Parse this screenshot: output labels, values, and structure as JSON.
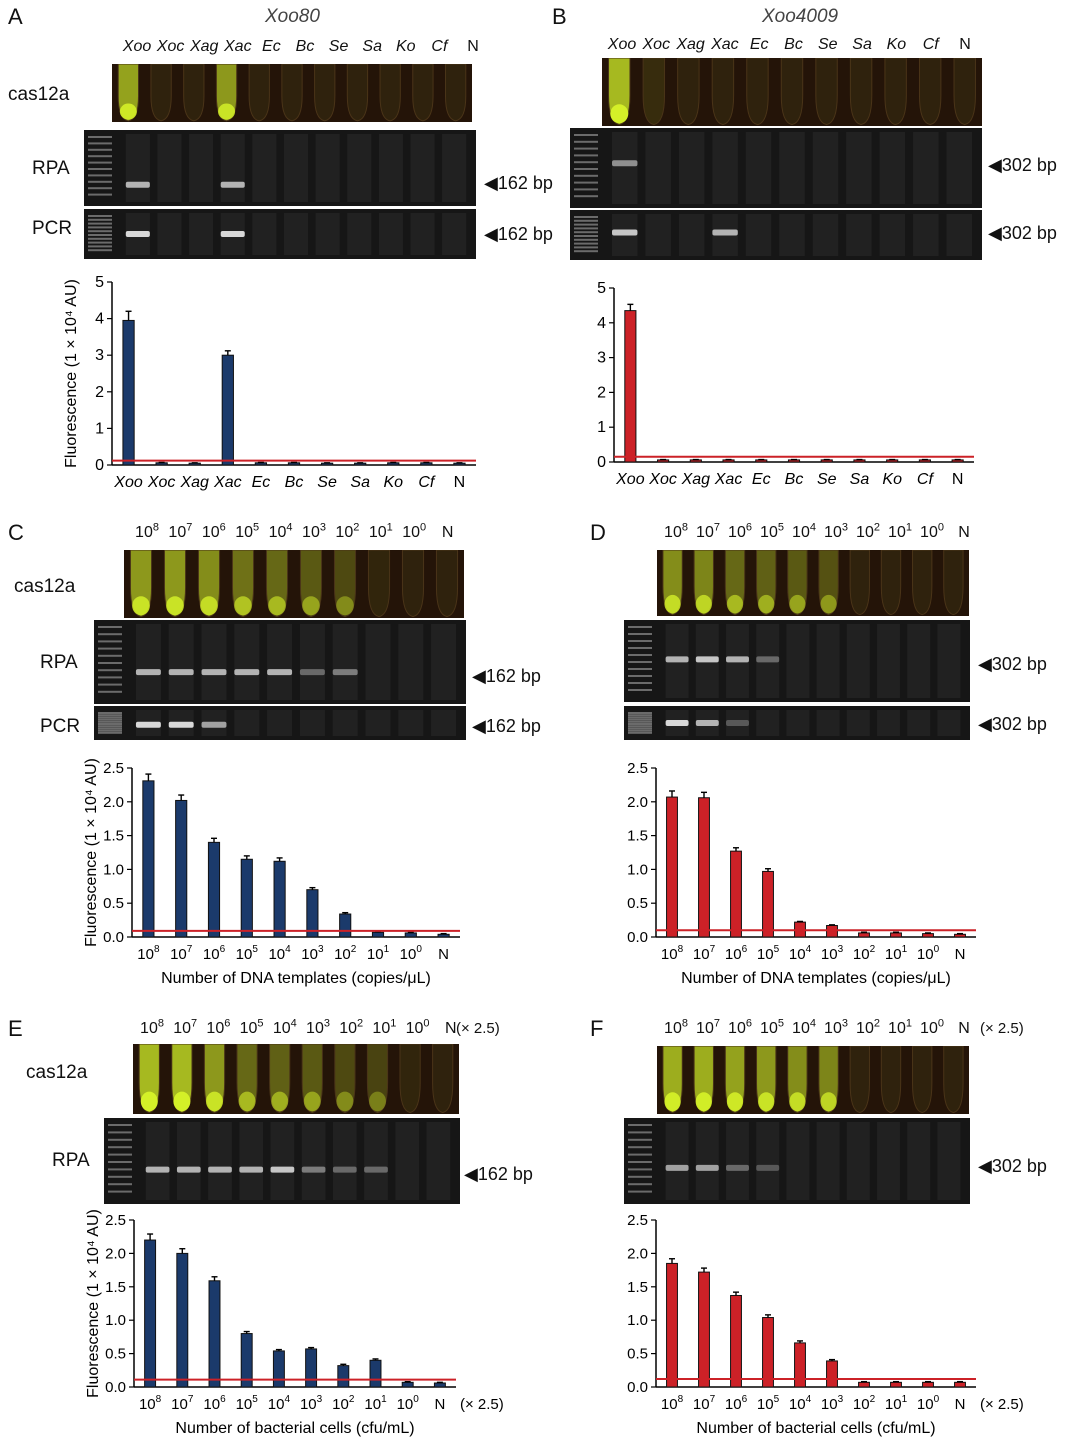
{
  "colors": {
    "blue": "#1b3a6b",
    "red": "#cc2127",
    "threshold": "#cc2127",
    "tube_bg": "#241408",
    "gel_bg": "#161616",
    "band": "#d8d8d8",
    "glow": "#d4f028"
  },
  "common": {
    "cas12a": "cas12a",
    "rpa": "RPA",
    "pcr": "PCR",
    "bp162": "◀162 bp",
    "bp302": "◀302 bp",
    "bp162_spaced": "◀162 bp",
    "bp302_spaced": "◀302 bp",
    "times25": "(× 2.5)"
  },
  "panels": {
    "A": {
      "letter": "A",
      "title": "Xoo80"
    },
    "B": {
      "letter": "B",
      "title": "Xoo4009"
    },
    "C": {
      "letter": "C"
    },
    "D": {
      "letter": "D"
    },
    "E": {
      "letter": "E"
    },
    "F": {
      "letter": "F"
    }
  },
  "strain_lanes": [
    "Xoo",
    "Xoc",
    "Xag",
    "Xac",
    "Ec",
    "Bc",
    "Se",
    "Sa",
    "Ko",
    "Cf",
    "N"
  ],
  "dilution_lanes": [
    {
      "base": "10",
      "exp": "8"
    },
    {
      "base": "10",
      "exp": "7"
    },
    {
      "base": "10",
      "exp": "6"
    },
    {
      "base": "10",
      "exp": "5"
    },
    {
      "base": "10",
      "exp": "4"
    },
    {
      "base": "10",
      "exp": "3"
    },
    {
      "base": "10",
      "exp": "2"
    },
    {
      "base": "10",
      "exp": "1"
    },
    {
      "base": "10",
      "exp": "0"
    },
    {
      "base": "N",
      "exp": ""
    }
  ],
  "chart_data": [
    {
      "panel": "A",
      "type": "bar",
      "categories": [
        "Xoo",
        "Xoc",
        "Xag",
        "Xac",
        "Ec",
        "Bc",
        "Se",
        "Sa",
        "Ko",
        "Cf",
        "N"
      ],
      "values": [
        3.95,
        0.06,
        0.05,
        3.0,
        0.06,
        0.06,
        0.05,
        0.05,
        0.06,
        0.06,
        0.05
      ],
      "errors": [
        0.25,
        0.01,
        0.01,
        0.12,
        0.01,
        0.01,
        0.01,
        0.01,
        0.01,
        0.01,
        0.01
      ],
      "threshold": 0.12,
      "ylim": [
        0,
        5
      ],
      "yticks": [
        0,
        1,
        2,
        3,
        4,
        5
      ],
      "ylabel": "Fluorescence (1 × 10⁴ AU)",
      "xlabel": "",
      "color": "blue"
    },
    {
      "panel": "B",
      "type": "bar",
      "categories": [
        "Xoo",
        "Xoc",
        "Xag",
        "Xac",
        "Ec",
        "Bc",
        "Se",
        "Sa",
        "Ko",
        "Cf",
        "N"
      ],
      "values": [
        4.35,
        0.06,
        0.06,
        0.06,
        0.06,
        0.06,
        0.06,
        0.06,
        0.06,
        0.06,
        0.06
      ],
      "errors": [
        0.18,
        0.01,
        0.01,
        0.01,
        0.01,
        0.01,
        0.01,
        0.01,
        0.01,
        0.01,
        0.01
      ],
      "threshold": 0.15,
      "ylim": [
        0,
        5
      ],
      "yticks": [
        0,
        1,
        2,
        3,
        4,
        5
      ],
      "ylabel": "",
      "xlabel": "",
      "color": "red"
    },
    {
      "panel": "C",
      "type": "bar",
      "categories": [
        "10^8",
        "10^7",
        "10^6",
        "10^5",
        "10^4",
        "10^3",
        "10^2",
        "10^1",
        "10^0",
        "N"
      ],
      "values": [
        2.31,
        2.02,
        1.4,
        1.15,
        1.12,
        0.7,
        0.34,
        0.07,
        0.06,
        0.04
      ],
      "errors": [
        0.1,
        0.08,
        0.06,
        0.05,
        0.05,
        0.03,
        0.02,
        0.01,
        0.01,
        0.01
      ],
      "threshold": 0.09,
      "ylim": [
        0,
        2.5
      ],
      "yticks": [
        0.0,
        0.5,
        1.0,
        1.5,
        2.0,
        2.5
      ],
      "ylabel": "Fluorescence (1 × 10⁴ AU)",
      "xlabel": "Number of DNA templates (copies/μL)",
      "color": "blue"
    },
    {
      "panel": "D",
      "type": "bar",
      "categories": [
        "10^8",
        "10^7",
        "10^6",
        "10^5",
        "10^4",
        "10^3",
        "10^2",
        "10^1",
        "10^0",
        "N"
      ],
      "values": [
        2.07,
        2.06,
        1.27,
        0.97,
        0.22,
        0.17,
        0.06,
        0.06,
        0.05,
        0.04
      ],
      "errors": [
        0.09,
        0.08,
        0.05,
        0.04,
        0.01,
        0.01,
        0.01,
        0.01,
        0.01,
        0.01
      ],
      "threshold": 0.1,
      "ylim": [
        0,
        2.5
      ],
      "yticks": [
        0.0,
        0.5,
        1.0,
        1.5,
        2.0,
        2.5
      ],
      "ylabel": "",
      "xlabel": "Number of DNA templates (copies/μL)",
      "color": "red"
    },
    {
      "panel": "E",
      "type": "bar",
      "categories": [
        "10^8",
        "10^7",
        "10^6",
        "10^5",
        "10^4",
        "10^3",
        "10^2",
        "10^1",
        "10^0",
        "N"
      ],
      "values": [
        2.2,
        2.0,
        1.59,
        0.8,
        0.54,
        0.57,
        0.32,
        0.4,
        0.07,
        0.06
      ],
      "errors": [
        0.09,
        0.07,
        0.06,
        0.03,
        0.02,
        0.02,
        0.02,
        0.02,
        0.01,
        0.01
      ],
      "threshold": 0.11,
      "ylim": [
        0,
        2.5
      ],
      "yticks": [
        0.0,
        0.5,
        1.0,
        1.5,
        2.0,
        2.5
      ],
      "ylabel": "Fluorescence (1 × 10⁴ AU)",
      "xlabel": "Number of bacterial cells (cfu/mL)",
      "color": "blue"
    },
    {
      "panel": "F",
      "type": "bar",
      "categories": [
        "10^8",
        "10^7",
        "10^6",
        "10^5",
        "10^4",
        "10^3",
        "10^2",
        "10^1",
        "10^0",
        "N"
      ],
      "values": [
        1.85,
        1.72,
        1.37,
        1.04,
        0.66,
        0.39,
        0.07,
        0.07,
        0.07,
        0.07
      ],
      "errors": [
        0.07,
        0.06,
        0.05,
        0.04,
        0.03,
        0.02,
        0.01,
        0.01,
        0.01,
        0.01
      ],
      "threshold": 0.12,
      "ylim": [
        0,
        2.5
      ],
      "yticks": [
        0.0,
        0.5,
        1.0,
        1.5,
        2.0,
        2.5
      ],
      "ylabel": "",
      "xlabel": "Number of bacterial cells (cfu/mL)",
      "color": "red"
    }
  ],
  "tube_glow": {
    "A": [
      0.9,
      0.05,
      0.05,
      0.85,
      0.05,
      0.05,
      0.05,
      0.05,
      0.05,
      0.05,
      0.05
    ],
    "B": [
      1.0,
      0.15,
      0.05,
      0.05,
      0.05,
      0.05,
      0.05,
      0.05,
      0.05,
      0.05,
      0.05
    ],
    "C": [
      0.85,
      0.85,
      0.8,
      0.65,
      0.6,
      0.5,
      0.4,
      0.08,
      0.05,
      0.05
    ],
    "D": [
      0.8,
      0.75,
      0.6,
      0.55,
      0.5,
      0.45,
      0.05,
      0.05,
      0.05,
      0.05
    ],
    "E": [
      1.0,
      1.0,
      0.85,
      0.6,
      0.55,
      0.5,
      0.4,
      0.35,
      0.08,
      0.05
    ],
    "F": [
      0.95,
      0.95,
      0.9,
      0.85,
      0.8,
      0.75,
      0.05,
      0.05,
      0.05,
      0.05
    ]
  },
  "gel_bands": {
    "A_rpa": [
      0.8,
      0,
      0,
      0.8,
      0,
      0,
      0,
      0,
      0,
      0,
      0
    ],
    "A_pcr": [
      1.0,
      0,
      0,
      1.0,
      0,
      0,
      0,
      0,
      0,
      0,
      0
    ],
    "B_rpa": [
      0.6,
      0,
      0,
      0,
      0,
      0,
      0,
      0,
      0,
      0,
      0
    ],
    "B_pcr": [
      0.9,
      0,
      0,
      0.8,
      0,
      0,
      0,
      0,
      0,
      0,
      0
    ],
    "C_rpa": [
      0.8,
      0.8,
      0.8,
      0.8,
      0.8,
      0.4,
      0.5,
      0,
      0,
      0
    ],
    "C_pcr": [
      1.0,
      1.0,
      0.7,
      0,
      0,
      0,
      0,
      0,
      0,
      0
    ],
    "D_rpa": [
      0.8,
      0.9,
      0.8,
      0.4,
      0,
      0,
      0,
      0,
      0,
      0
    ],
    "D_pcr": [
      1.0,
      0.8,
      0.3,
      0,
      0,
      0,
      0,
      0,
      0,
      0
    ],
    "E_rpa": [
      0.8,
      0.8,
      0.8,
      0.8,
      0.9,
      0.5,
      0.4,
      0.4,
      0,
      0
    ],
    "F_rpa": [
      0.7,
      0.7,
      0.4,
      0.3,
      0,
      0,
      0,
      0,
      0,
      0
    ]
  }
}
